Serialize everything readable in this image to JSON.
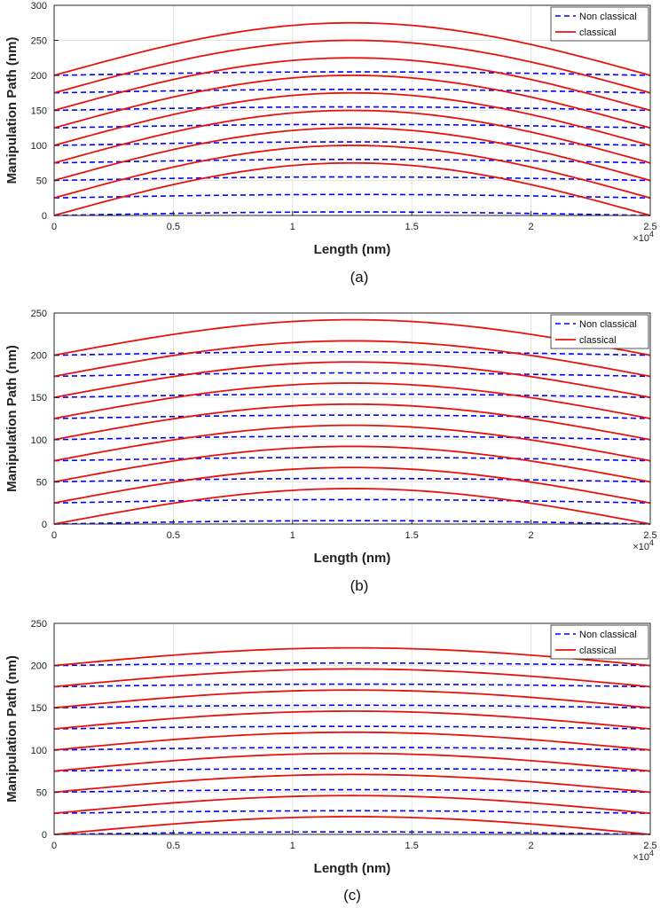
{
  "figure": {
    "panels": [
      {
        "id": "a",
        "caption": "(a)",
        "chart_data": {
          "type": "line",
          "title": "",
          "xlabel": "Length (nm)",
          "ylabel": "Manipulation Path (nm)",
          "xlim": [
            0,
            2.5
          ],
          "ylim": [
            0,
            300
          ],
          "xticks": [
            0,
            0.5,
            1,
            1.5,
            2,
            2.5
          ],
          "xtick_labels": [
            "0",
            "0.5",
            "1",
            "1.5",
            "2",
            "2.5"
          ],
          "yticks": [
            0,
            50,
            100,
            150,
            200,
            250,
            300
          ],
          "ytick_labels": [
            "0",
            "50",
            "100",
            "150",
            "200",
            "250",
            "300"
          ],
          "x_multiplier": "×10",
          "x_multiplier_exp": "4",
          "legend": {
            "position": "top-right",
            "entries": [
              "Non classical",
              "classical"
            ]
          },
          "grid": true,
          "series": [
            {
              "name": "Non classical",
              "style": "dashed",
              "color": "#0000ff",
              "x": [
                0,
                1.25,
                2.5
              ],
              "baselines": [
                0,
                25,
                50,
                75,
                100,
                125,
                150,
                175,
                200
              ],
              "peak_offset": 5
            },
            {
              "name": "classical",
              "style": "solid",
              "color": "#e8120c",
              "x": [
                0,
                1.25,
                2.5
              ],
              "baselines": [
                0,
                25,
                50,
                75,
                100,
                125,
                150,
                175,
                200
              ],
              "peak_offset": 75
            }
          ]
        }
      },
      {
        "id": "b",
        "caption": "(b)",
        "chart_data": {
          "type": "line",
          "title": "",
          "xlabel": "Length (nm)",
          "ylabel": "Manipulation Path (nm)",
          "xlim": [
            0,
            2.5
          ],
          "ylim": [
            0,
            250
          ],
          "xticks": [
            0,
            0.5,
            1,
            1.5,
            2,
            2.5
          ],
          "xtick_labels": [
            "0",
            "0.5",
            "1",
            "1.5",
            "2",
            "2.5"
          ],
          "yticks": [
            0,
            50,
            100,
            150,
            200,
            250
          ],
          "ytick_labels": [
            "0",
            "50",
            "100",
            "150",
            "200",
            "250"
          ],
          "x_multiplier": "×10",
          "x_multiplier_exp": "4",
          "legend": {
            "position": "top-right",
            "entries": [
              "Non classical",
              "classical"
            ]
          },
          "grid": true,
          "series": [
            {
              "name": "Non classical",
              "style": "dashed",
              "color": "#0000ff",
              "x": [
                0,
                1.25,
                2.5
              ],
              "baselines": [
                0,
                25,
                50,
                75,
                100,
                125,
                150,
                175,
                200
              ],
              "peak_offset": 4
            },
            {
              "name": "classical",
              "style": "solid",
              "color": "#e8120c",
              "x": [
                0,
                1.25,
                2.5
              ],
              "baselines": [
                0,
                25,
                50,
                75,
                100,
                125,
                150,
                175,
                200
              ],
              "peak_offset": 42
            }
          ]
        }
      },
      {
        "id": "c",
        "caption": "(c)",
        "chart_data": {
          "type": "line",
          "title": "",
          "xlabel": "Length (nm)",
          "ylabel": "Manipulation Path (nm)",
          "xlim": [
            0,
            2.5
          ],
          "ylim": [
            0,
            250
          ],
          "xticks": [
            0,
            0.5,
            1,
            1.5,
            2,
            2.5
          ],
          "xtick_labels": [
            "0",
            "0.5",
            "1",
            "1.5",
            "2",
            "2.5"
          ],
          "yticks": [
            0,
            50,
            100,
            150,
            200,
            250
          ],
          "ytick_labels": [
            "0",
            "50",
            "100",
            "150",
            "200",
            "250"
          ],
          "x_multiplier": "×10",
          "x_multiplier_exp": "4",
          "legend": {
            "position": "top-right",
            "entries": [
              "Non classical",
              "classical"
            ]
          },
          "grid": true,
          "series": [
            {
              "name": "Non classical",
              "style": "dashed",
              "color": "#0000ff",
              "x": [
                0,
                1.25,
                2.5
              ],
              "baselines": [
                0,
                25,
                50,
                75,
                100,
                125,
                150,
                175,
                200
              ],
              "peak_offset": 3
            },
            {
              "name": "classical",
              "style": "solid",
              "color": "#e8120c",
              "x": [
                0,
                1.25,
                2.5
              ],
              "baselines": [
                0,
                25,
                50,
                75,
                100,
                125,
                150,
                175,
                200
              ],
              "peak_offset": 21
            }
          ]
        }
      }
    ]
  }
}
